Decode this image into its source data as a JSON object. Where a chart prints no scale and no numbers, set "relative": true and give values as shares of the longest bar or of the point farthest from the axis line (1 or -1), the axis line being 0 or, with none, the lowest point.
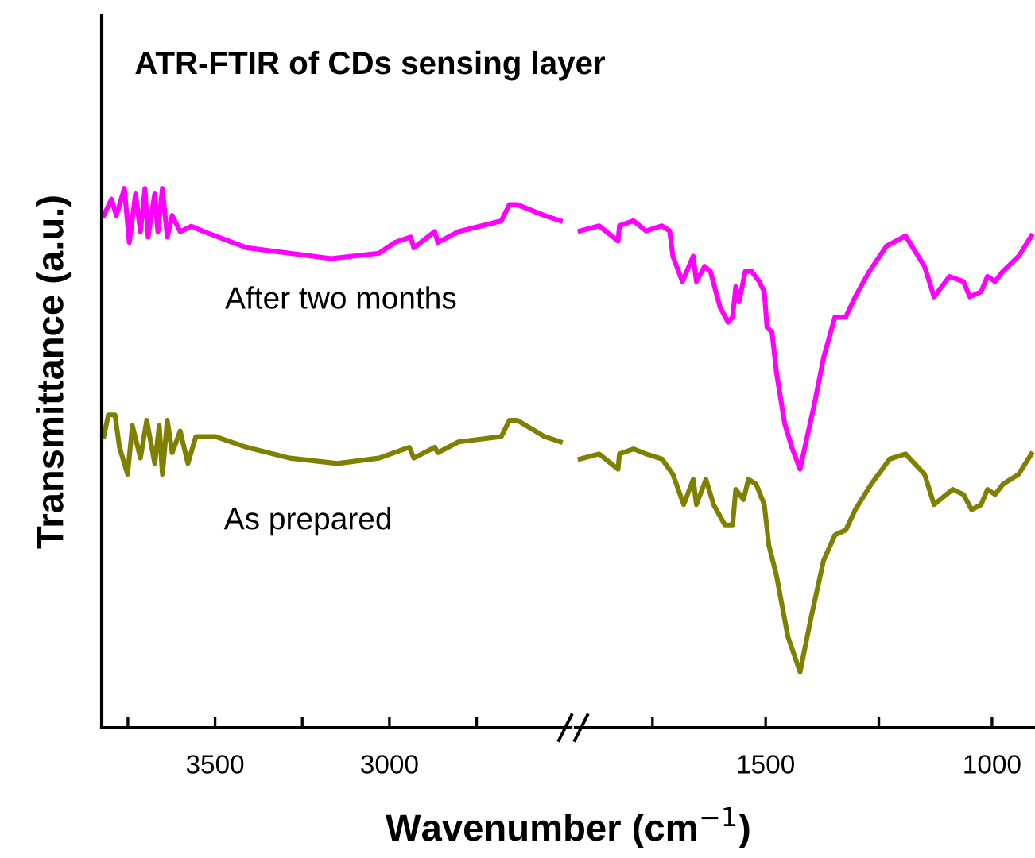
{
  "chart_data": [
    {
      "type": "line",
      "title": "ATR-FTIR of CDs sensing layer",
      "xlabel": "Wavenumber (cm$^{−1}$)",
      "ylabel": "Transmittance (a.u.)",
      "relative": true,
      "legend": false,
      "grid": false,
      "xlim": [
        3825,
        2480
      ],
      "xticks": [
        {
          "value": 3750,
          "label": null
        },
        3500,
        {
          "value": 3250,
          "label": null
        },
        3000,
        {
          "value": 2750,
          "label": null
        }
      ],
      "series": [
        {
          "name": "After two months",
          "color": "#ff00ff",
          "x": [
            3819,
            3797,
            3783,
            3760,
            3746,
            3728,
            3714,
            3701,
            3692,
            3673,
            3664,
            3651,
            3637,
            3623,
            3600,
            3568,
            3532,
            3409,
            3286,
            3167,
            3030,
            2984,
            2939,
            2930,
            2870,
            2861,
            2802,
            2679,
            2656,
            2633,
            2556,
            2510
          ],
          "values": [
            0.95,
            0.98,
            0.95,
            1.0,
            0.9,
            0.99,
            0.92,
            1.0,
            0.91,
            0.99,
            0.92,
            1.0,
            0.91,
            0.95,
            0.92,
            0.93,
            0.92,
            0.89,
            0.88,
            0.87,
            0.88,
            0.9,
            0.91,
            0.89,
            0.92,
            0.9,
            0.92,
            0.94,
            0.97,
            0.97,
            0.95,
            0.94
          ]
        },
        {
          "name": "As prepared",
          "color": "#808000",
          "x": [
            3819,
            3806,
            3787,
            3774,
            3751,
            3737,
            3714,
            3696,
            3673,
            3660,
            3651,
            3637,
            3623,
            3600,
            3578,
            3555,
            3500,
            3409,
            3286,
            3149,
            3030,
            2943,
            2930,
            2870,
            2861,
            2802,
            2679,
            2656,
            2633,
            2556,
            2510
          ],
          "values": [
            0.54,
            0.58,
            0.58,
            0.52,
            0.47,
            0.56,
            0.5,
            0.57,
            0.49,
            0.56,
            0.47,
            0.57,
            0.51,
            0.55,
            0.49,
            0.54,
            0.54,
            0.52,
            0.5,
            0.49,
            0.5,
            0.52,
            0.5,
            0.52,
            0.51,
            0.53,
            0.54,
            0.57,
            0.57,
            0.54,
            0.53
          ]
        }
      ]
    },
    {
      "type": "line",
      "relative": true,
      "legend": false,
      "grid": false,
      "tick_labels": "x",
      "xlim": [
        1920,
        905
      ],
      "xticks": [
        {
          "value": 1750,
          "label": null
        },
        1500,
        {
          "value": 1250,
          "label": null
        },
        1000
      ],
      "series": [
        {
          "color": "#ff00ff",
          "x": [
            1910,
            1868,
            1826,
            1823,
            1792,
            1764,
            1729,
            1712,
            1705,
            1684,
            1660,
            1653,
            1635,
            1622,
            1601,
            1583,
            1573,
            1566,
            1559,
            1545,
            1531,
            1514,
            1503,
            1497,
            1486,
            1476,
            1458,
            1441,
            1424,
            1392,
            1372,
            1347,
            1323,
            1302,
            1271,
            1233,
            1191,
            1149,
            1128,
            1094,
            1063,
            1049,
            1024,
            1010,
            993,
            976,
            941,
            913
          ],
          "values": [
            0.98,
            0.99,
            0.96,
            0.99,
            1.0,
            0.98,
            0.99,
            0.98,
            0.93,
            0.88,
            0.93,
            0.88,
            0.91,
            0.9,
            0.83,
            0.8,
            0.81,
            0.87,
            0.84,
            0.9,
            0.9,
            0.88,
            0.86,
            0.79,
            0.78,
            0.7,
            0.6,
            0.55,
            0.51,
            0.64,
            0.73,
            0.81,
            0.81,
            0.85,
            0.9,
            0.95,
            0.97,
            0.91,
            0.85,
            0.89,
            0.88,
            0.85,
            0.86,
            0.89,
            0.88,
            0.9,
            0.93,
            0.97
          ]
        },
        {
          "color": "#808000",
          "x": [
            1910,
            1868,
            1826,
            1823,
            1792,
            1764,
            1729,
            1705,
            1681,
            1660,
            1653,
            1632,
            1615,
            1590,
            1573,
            1566,
            1549,
            1538,
            1521,
            1503,
            1493,
            1476,
            1451,
            1424,
            1399,
            1372,
            1347,
            1323,
            1302,
            1267,
            1226,
            1191,
            1149,
            1128,
            1087,
            1063,
            1045,
            1024,
            1010,
            993,
            976,
            941,
            913
          ],
          "values": [
            0.53,
            0.54,
            0.51,
            0.54,
            0.55,
            0.54,
            0.53,
            0.5,
            0.44,
            0.49,
            0.44,
            0.49,
            0.44,
            0.4,
            0.4,
            0.47,
            0.45,
            0.49,
            0.48,
            0.44,
            0.36,
            0.3,
            0.18,
            0.11,
            0.22,
            0.33,
            0.38,
            0.39,
            0.43,
            0.48,
            0.53,
            0.54,
            0.5,
            0.44,
            0.47,
            0.46,
            0.43,
            0.44,
            0.47,
            0.46,
            0.48,
            0.5,
            0.54
          ]
        }
      ]
    }
  ]
}
